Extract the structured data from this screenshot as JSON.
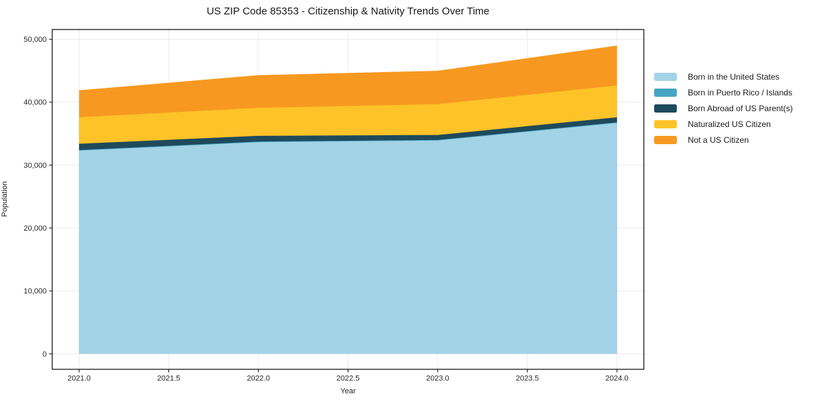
{
  "title": "US ZIP Code 85353 - Citizenship & Nativity Trends Over Time",
  "chart_data": {
    "type": "area",
    "stacked": true,
    "title": "US ZIP Code 85353 - Citizenship & Nativity Trends Over Time",
    "xlabel": "Year",
    "ylabel": "Population",
    "x": [
      2021,
      2022,
      2023,
      2024
    ],
    "series": [
      {
        "name": "Born in the United States",
        "color": "#A3D3E6",
        "values": [
          32300,
          33650,
          33900,
          36700
        ]
      },
      {
        "name": "Born in Puerto Rico / Islands",
        "color": "#45A5C3",
        "values": [
          100,
          100,
          100,
          100
        ]
      },
      {
        "name": "Born Abroad of US Parent(s)",
        "color": "#1F4A5C",
        "values": [
          1000,
          900,
          800,
          800
        ]
      },
      {
        "name": "Naturalized US Citizen",
        "color": "#FDC328",
        "values": [
          4200,
          4450,
          4900,
          5050
        ]
      },
      {
        "name": "Not a US Citizen",
        "color": "#F79920",
        "values": [
          4300,
          5200,
          5300,
          6350
        ]
      }
    ],
    "xlim": [
      2020.85,
      2024.15
    ],
    "ylim": [
      -2455,
      51555
    ],
    "x_ticks": [
      {
        "v": 2021.0,
        "label": "2021.0"
      },
      {
        "v": 2021.5,
        "label": "2021.5"
      },
      {
        "v": 2022.0,
        "label": "2022.0"
      },
      {
        "v": 2022.5,
        "label": "2022.5"
      },
      {
        "v": 2023.0,
        "label": "2023.0"
      },
      {
        "v": 2023.5,
        "label": "2023.5"
      },
      {
        "v": 2024.0,
        "label": "2024.0"
      }
    ],
    "y_ticks": [
      {
        "v": 0,
        "label": "0"
      },
      {
        "v": 10000,
        "label": "10,000"
      },
      {
        "v": 20000,
        "label": "20,000"
      },
      {
        "v": 30000,
        "label": "30,000"
      },
      {
        "v": 40000,
        "label": "40,000"
      },
      {
        "v": 50000,
        "label": "50,000"
      }
    ],
    "grid": true,
    "grid_color": "#EAEAEA",
    "spine_color": "#1a1a1a",
    "legend_position": "right"
  }
}
